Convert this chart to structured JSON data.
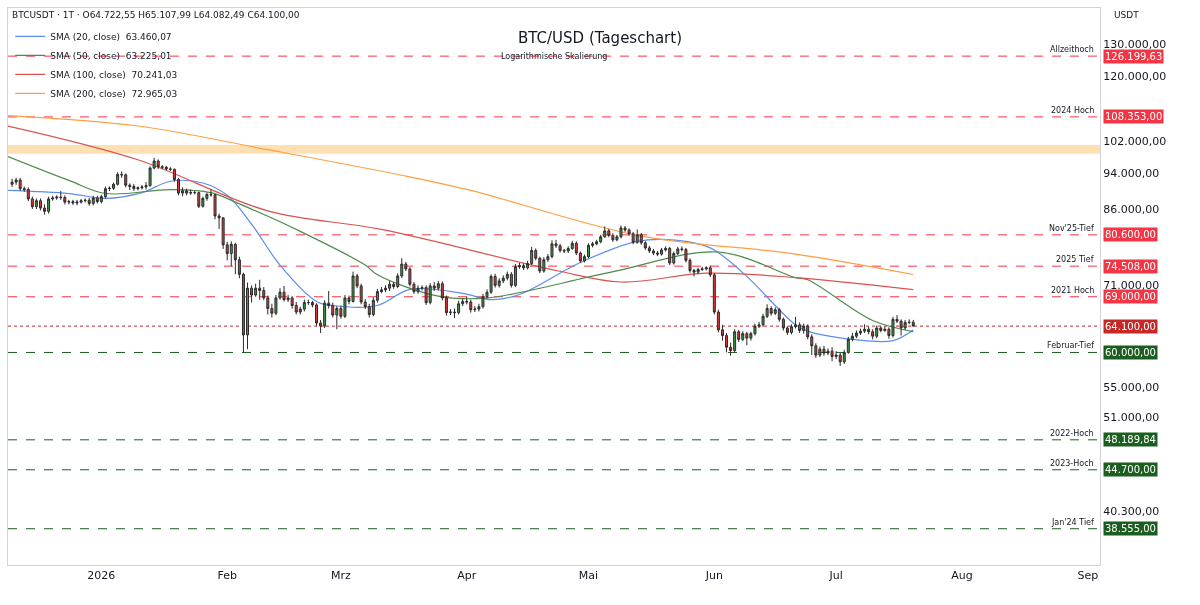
{
  "chart_data": {
    "type": "candlestick",
    "title": "BTC/USD (Tageschart)",
    "subtitle": "Logarithmische Skalierung",
    "ylabel": "USDT",
    "annotations": [
      "BTCUSDT · 1T · O64.722,55 H65.107,99 L64.082,49 C64.100,00",
      {
        "text": "Allzeithoch",
        "x": "2026-09-03",
        "y": 126199.63
      },
      {
        "text": "2024 Hoch",
        "x": "2026-09-03",
        "y": 108353
      },
      {
        "text": "Nov'25-Tief",
        "x": "2026-09-03",
        "y": 80600
      },
      {
        "text": "2025 Tief",
        "x": "2026-09-03",
        "y": 74508
      },
      {
        "text": "2021 Hoch",
        "x": "2026-09-03",
        "y": 69000
      },
      {
        "text": "Februar-Tief",
        "x": "2026-09-03",
        "y": 60000
      },
      {
        "text": "2022-Hoch",
        "x": "2026-09-03",
        "y": 48189.84
      },
      {
        "text": "2023-Hoch",
        "x": "2026-09-03",
        "y": 44700
      },
      {
        "text": "Jan'24 Tief",
        "x": "2026-09-03",
        "y": 38555
      }
    ],
    "legend": "top left",
    "xlim": [
      "2025-12-09",
      "2026-09-04"
    ],
    "xticks": [
      {
        "value": "2026-01-01",
        "label": "2026"
      },
      {
        "value": "2026-02-01",
        "label": "Feb"
      },
      {
        "value": "2026-03-01",
        "label": "Mrz"
      },
      {
        "value": "2026-04-01",
        "label": "Apr"
      },
      {
        "value": "2026-05-01",
        "label": "Mai"
      },
      {
        "value": "2026-06-01",
        "label": "Jun"
      },
      {
        "value": "2026-07-01",
        "label": "Jul"
      },
      {
        "value": "2026-08-01",
        "label": "Aug"
      },
      {
        "value": "2026-09-01",
        "label": "Sep"
      }
    ],
    "log": true,
    "ylim": [
      35200,
      142400
    ],
    "yticks": [
      {
        "value": 40300,
        "label": "40.300,00"
      },
      {
        "value": 51000,
        "label": "51.000,00"
      },
      {
        "value": 55000,
        "label": "55.000,00"
      },
      {
        "value": 71000,
        "label": "71.000,00"
      },
      {
        "value": 86000,
        "label": "86.000,00"
      },
      {
        "value": 94000,
        "label": "94.000,00"
      },
      {
        "value": 102000,
        "label": "102.000,00"
      },
      {
        "value": 120000,
        "label": "120.000,00"
      },
      {
        "value": 130000,
        "label": "130.000,00"
      }
    ],
    "ref_lines": [
      {
        "axis": "y",
        "value": 126199.63,
        "label": "126.199,63",
        "color": "#f23645",
        "line_style": "dashed"
      },
      {
        "axis": "y",
        "value": 108353,
        "label": "108.353,00",
        "color": "#f23645",
        "line_style": "dashed"
      },
      {
        "axis": "y",
        "value": 80600,
        "label": "80.600,00",
        "color": "#f23645",
        "line_style": "dashed"
      },
      {
        "axis": "y",
        "value": 74508,
        "label": "74.508,00",
        "color": "#f23645",
        "line_style": "dashed"
      },
      {
        "axis": "y",
        "value": 69000,
        "label": "69.000,00",
        "color": "#f23645",
        "line_style": "dashed"
      },
      {
        "axis": "y",
        "value": 64100,
        "label": "64.100,00",
        "color": "#c62828",
        "line_style": "dotted"
      },
      {
        "axis": "y",
        "value": 60000,
        "label": "60.000,00",
        "color": "#1b5e20",
        "line_style": "dashed"
      },
      {
        "axis": "y",
        "value": 48189.84,
        "label": "48.189,84",
        "color": "#1b5e20",
        "line_style": "dashed"
      },
      {
        "axis": "y",
        "value": 44700,
        "label": "44.700,00",
        "color": "#1b5e20",
        "line_style": "dashed"
      },
      {
        "axis": "y",
        "value": 38555,
        "label": "38.555,00",
        "color": "#1b5e20",
        "line_style": "dashed"
      }
    ],
    "bands": [
      {
        "axis": "y",
        "from": 98800,
        "to": 101000,
        "color": "#ffe0b2"
      }
    ],
    "x": [
      "2025-12-10",
      "2025-12-11",
      "2025-12-12",
      "2025-12-13",
      "2025-12-14",
      "2025-12-15",
      "2025-12-16",
      "2025-12-17",
      "2025-12-18",
      "2025-12-19",
      "2025-12-20",
      "2025-12-21",
      "2025-12-22",
      "2025-12-23",
      "2025-12-24",
      "2025-12-25",
      "2025-12-26",
      "2025-12-27",
      "2025-12-28",
      "2025-12-29",
      "2025-12-30",
      "2025-12-31",
      "2026-01-01",
      "2026-01-02",
      "2026-01-03",
      "2026-01-04",
      "2026-01-05",
      "2026-01-06",
      "2026-01-07",
      "2026-01-08",
      "2026-01-09",
      "2026-01-10",
      "2026-01-11",
      "2026-01-12",
      "2026-01-13",
      "2026-01-14",
      "2026-01-15",
      "2026-01-16",
      "2026-01-17",
      "2026-01-18",
      "2026-01-19",
      "2026-01-20",
      "2026-01-21",
      "2026-01-22",
      "2026-01-23",
      "2026-01-24",
      "2026-01-25",
      "2026-01-26",
      "2026-01-27",
      "2026-01-28",
      "2026-01-29",
      "2026-01-30",
      "2026-01-31",
      "2026-02-01",
      "2026-02-02",
      "2026-02-03",
      "2026-02-04",
      "2026-02-05",
      "2026-02-06",
      "2026-02-07",
      "2026-02-08",
      "2026-02-09",
      "2026-02-10",
      "2026-02-11",
      "2026-02-12",
      "2026-02-13",
      "2026-02-14",
      "2026-02-15",
      "2026-02-16",
      "2026-02-17",
      "2026-02-18",
      "2026-02-19",
      "2026-02-20",
      "2026-02-21",
      "2026-02-22",
      "2026-02-23",
      "2026-02-24",
      "2026-02-25",
      "2026-02-26",
      "2026-02-27",
      "2026-02-28",
      "2026-03-01",
      "2026-03-02",
      "2026-03-03",
      "2026-03-04",
      "2026-03-05",
      "2026-03-06",
      "2026-03-07",
      "2026-03-08",
      "2026-03-09",
      "2026-03-10",
      "2026-03-11",
      "2026-03-12",
      "2026-03-13",
      "2026-03-14",
      "2026-03-15",
      "2026-03-16",
      "2026-03-17",
      "2026-03-18",
      "2026-03-19",
      "2026-03-20",
      "2026-03-21",
      "2026-03-22",
      "2026-03-23",
      "2026-03-24",
      "2026-03-25",
      "2026-03-26",
      "2026-03-27",
      "2026-03-28",
      "2026-03-29",
      "2026-03-30",
      "2026-03-31",
      "2026-04-01",
      "2026-04-02",
      "2026-04-03",
      "2026-04-04",
      "2026-04-05",
      "2026-04-06",
      "2026-04-07",
      "2026-04-08",
      "2026-04-09",
      "2026-04-10",
      "2026-04-11",
      "2026-04-12",
      "2026-04-13",
      "2026-04-14",
      "2026-04-15",
      "2026-04-16",
      "2026-04-17",
      "2026-04-18",
      "2026-04-19",
      "2026-04-20",
      "2026-04-21",
      "2026-04-22",
      "2026-04-23",
      "2026-04-24",
      "2026-04-25",
      "2026-04-26",
      "2026-04-27",
      "2026-04-28",
      "2026-04-29",
      "2026-04-30",
      "2026-05-01",
      "2026-05-02",
      "2026-05-03",
      "2026-05-04",
      "2026-05-05",
      "2026-05-06",
      "2026-05-07",
      "2026-05-08",
      "2026-05-09",
      "2026-05-10",
      "2026-05-11",
      "2026-05-12",
      "2026-05-13",
      "2026-05-14",
      "2026-05-15",
      "2026-05-16",
      "2026-05-17",
      "2026-05-18",
      "2026-05-19",
      "2026-05-20",
      "2026-05-21",
      "2026-05-22",
      "2026-05-23",
      "2026-05-24",
      "2026-05-25",
      "2026-05-26",
      "2026-05-27",
      "2026-05-28",
      "2026-05-29",
      "2026-05-30",
      "2026-05-31",
      "2026-06-01",
      "2026-06-02",
      "2026-06-03",
      "2026-06-04",
      "2026-06-05",
      "2026-06-06",
      "2026-06-07",
      "2026-06-08",
      "2026-06-09",
      "2026-06-10",
      "2026-06-11",
      "2026-06-12",
      "2026-06-13",
      "2026-06-14",
      "2026-06-15",
      "2026-06-16",
      "2026-06-17",
      "2026-06-18",
      "2026-06-19",
      "2026-06-20",
      "2026-06-21",
      "2026-06-22",
      "2026-06-23",
      "2026-06-24",
      "2026-06-25",
      "2026-06-26",
      "2026-06-27",
      "2026-06-28",
      "2026-06-29",
      "2026-06-30",
      "2026-07-01",
      "2026-07-02",
      "2026-07-03",
      "2026-07-04",
      "2026-07-05",
      "2026-07-06",
      "2026-07-07",
      "2026-07-08",
      "2026-07-09",
      "2026-07-10",
      "2026-07-11",
      "2026-07-12",
      "2026-07-13",
      "2026-07-14",
      "2026-07-15",
      "2026-07-16",
      "2026-07-17",
      "2026-07-18",
      "2026-07-19",
      "2026-07-20"
    ],
    "ohlc": [
      [
        91500,
        92800,
        90900,
        92000
      ],
      [
        92000,
        93000,
        91400,
        92500
      ],
      [
        92500,
        93000,
        90000,
        90500
      ],
      [
        90500,
        91000,
        89800,
        90300
      ],
      [
        90300,
        90800,
        87700,
        88200
      ],
      [
        88200,
        88700,
        86000,
        86500
      ],
      [
        86500,
        88300,
        86000,
        87800
      ],
      [
        87800,
        88300,
        85700,
        86200
      ],
      [
        86200,
        87000,
        84800,
        85500
      ],
      [
        85500,
        88700,
        85000,
        88200
      ],
      [
        88200,
        88900,
        87800,
        88400
      ],
      [
        88400,
        89000,
        88000,
        88600
      ],
      [
        88600,
        90000,
        88000,
        88500
      ],
      [
        88500,
        89000,
        87000,
        87500
      ],
      [
        87500,
        88000,
        87000,
        87600
      ],
      [
        87600,
        88000,
        86900,
        87300
      ],
      [
        87300,
        88000,
        86800,
        87500
      ],
      [
        87500,
        88200,
        87200,
        87800
      ],
      [
        87800,
        88300,
        87400,
        87900
      ],
      [
        87900,
        88400,
        86700,
        87200
      ],
      [
        87200,
        88900,
        86800,
        88400
      ],
      [
        88400,
        88900,
        87200,
        87600
      ],
      [
        87600,
        89100,
        87200,
        88700
      ],
      [
        88700,
        91000,
        88300,
        90500
      ],
      [
        90500,
        91000,
        90000,
        90600
      ],
      [
        90600,
        91900,
        90200,
        91500
      ],
      [
        91500,
        94300,
        91200,
        93800
      ],
      [
        93800,
        94500,
        93000,
        93700
      ],
      [
        93700,
        94000,
        90800,
        91300
      ],
      [
        91300,
        91700,
        90200,
        91000
      ],
      [
        91000,
        91600,
        90000,
        90500
      ],
      [
        90500,
        91000,
        90100,
        90700
      ],
      [
        90700,
        91300,
        90300,
        90900
      ],
      [
        90900,
        92000,
        90300,
        91200
      ],
      [
        91200,
        95700,
        90900,
        95300
      ],
      [
        95300,
        97800,
        95000,
        97000
      ],
      [
        97000,
        97400,
        95100,
        95600
      ],
      [
        95600,
        96000,
        95000,
        95500
      ],
      [
        95500,
        95800,
        94800,
        95100
      ],
      [
        95100,
        95500,
        94600,
        95000
      ],
      [
        95000,
        95200,
        92100,
        92600
      ],
      [
        92600,
        93000,
        89000,
        89500
      ],
      [
        89500,
        90800,
        88800,
        90000
      ],
      [
        90000,
        90500,
        89000,
        89500
      ],
      [
        89500,
        90300,
        89100,
        89600
      ],
      [
        89600,
        90000,
        89200,
        89600
      ],
      [
        89600,
        89800,
        86200,
        86600
      ],
      [
        86600,
        88700,
        86300,
        88300
      ],
      [
        88300,
        89600,
        87800,
        89200
      ],
      [
        89200,
        90300,
        88700,
        89100
      ],
      [
        89100,
        89300,
        83800,
        84500
      ],
      [
        84500,
        85000,
        81800,
        84100
      ],
      [
        84100,
        84300,
        77800,
        78600
      ],
      [
        78600,
        79200,
        75600,
        76900
      ],
      [
        76900,
        79300,
        74500,
        78700
      ],
      [
        78700,
        79000,
        73000,
        75700
      ],
      [
        75700,
        76300,
        72300,
        73000
      ],
      [
        73000,
        73300,
        60000,
        62700
      ],
      [
        62700,
        71500,
        60500,
        70500
      ],
      [
        70500,
        71000,
        68000,
        69300
      ],
      [
        69300,
        71300,
        69000,
        70500
      ],
      [
        70500,
        72000,
        68500,
        70100
      ],
      [
        70100,
        70700,
        68400,
        68800
      ],
      [
        68800,
        69200,
        66000,
        67000
      ],
      [
        67000,
        67800,
        65500,
        66200
      ],
      [
        66200,
        69300,
        65900,
        68800
      ],
      [
        68800,
        70500,
        68500,
        69800
      ],
      [
        69800,
        70900,
        68200,
        68500
      ],
      [
        68500,
        69300,
        68100,
        68800
      ],
      [
        68800,
        69100,
        67000,
        67500
      ],
      [
        67500,
        68100,
        66000,
        66400
      ],
      [
        66400,
        67300,
        66000,
        66900
      ],
      [
        66900,
        68500,
        66500,
        68000
      ],
      [
        68000,
        68500,
        67600,
        68000
      ],
      [
        68000,
        68300,
        67200,
        67600
      ],
      [
        67600,
        67900,
        64100,
        64600
      ],
      [
        64600,
        65100,
        63000,
        64100
      ],
      [
        64100,
        68400,
        63800,
        67900
      ],
      [
        67900,
        70000,
        67000,
        67500
      ],
      [
        67500,
        68000,
        65500,
        65900
      ],
      [
        65900,
        67400,
        63600,
        67000
      ],
      [
        67000,
        67500,
        65300,
        65700
      ],
      [
        65700,
        69300,
        65400,
        68800
      ],
      [
        68800,
        69200,
        67700,
        68200
      ],
      [
        68200,
        73500,
        68000,
        72700
      ],
      [
        72700,
        73100,
        70500,
        70900
      ],
      [
        70900,
        71300,
        67700,
        68100
      ],
      [
        68100,
        68600,
        66900,
        67300
      ],
      [
        67300,
        67800,
        65500,
        66000
      ],
      [
        66000,
        68900,
        65700,
        68400
      ],
      [
        68400,
        70400,
        68000,
        69900
      ],
      [
        69900,
        70700,
        69600,
        70200
      ],
      [
        70200,
        71000,
        69800,
        70500
      ],
      [
        70500,
        71800,
        70000,
        71200
      ],
      [
        71200,
        71600,
        70400,
        70800
      ],
      [
        70800,
        73200,
        70500,
        72700
      ],
      [
        72700,
        76000,
        72300,
        74900
      ],
      [
        74900,
        75300,
        73600,
        74000
      ],
      [
        74000,
        74300,
        70800,
        71200
      ],
      [
        71200,
        71600,
        69500,
        69900
      ],
      [
        69900,
        71000,
        69500,
        70500
      ],
      [
        70500,
        71000,
        70100,
        70600
      ],
      [
        70600,
        71000,
        67600,
        68000
      ],
      [
        68000,
        71400,
        67700,
        70900
      ],
      [
        70900,
        71600,
        70000,
        70500
      ],
      [
        70500,
        71800,
        70100,
        71300
      ],
      [
        71300,
        71700,
        68400,
        68800
      ],
      [
        68800,
        69200,
        65800,
        66300
      ],
      [
        66300,
        66900,
        65900,
        66400
      ],
      [
        66400,
        67000,
        65400,
        66300
      ],
      [
        66300,
        68300,
        66000,
        67800
      ],
      [
        67800,
        68700,
        67400,
        68200
      ],
      [
        68200,
        69000,
        67700,
        68100
      ],
      [
        68100,
        68500,
        66300,
        66800
      ],
      [
        66800,
        67400,
        66400,
        66900
      ],
      [
        66900,
        67800,
        66500,
        67300
      ],
      [
        67300,
        69500,
        67000,
        69000
      ],
      [
        69000,
        70300,
        68700,
        69800
      ],
      [
        69800,
        73000,
        69500,
        72600
      ],
      [
        72600,
        73100,
        70600,
        71000
      ],
      [
        71000,
        72300,
        70600,
        71800
      ],
      [
        71800,
        72800,
        71400,
        72300
      ],
      [
        72300,
        73500,
        71900,
        73000
      ],
      [
        73000,
        73400,
        70600,
        71000
      ],
      [
        71000,
        74900,
        70700,
        74400
      ],
      [
        74400,
        75100,
        74000,
        74600
      ],
      [
        74600,
        75000,
        73800,
        74200
      ],
      [
        74200,
        75500,
        73900,
        75000
      ],
      [
        75000,
        78200,
        74700,
        77500
      ],
      [
        77500,
        77900,
        75600,
        76000
      ],
      [
        76000,
        76300,
        73200,
        73600
      ],
      [
        73600,
        76200,
        73300,
        75700
      ],
      [
        75700,
        76800,
        75300,
        76300
      ],
      [
        76300,
        79500,
        76000,
        78800
      ],
      [
        78800,
        79600,
        78000,
        78400
      ],
      [
        78400,
        78800,
        77100,
        77500
      ],
      [
        77500,
        77800,
        77000,
        77400
      ],
      [
        77400,
        78300,
        77000,
        77900
      ],
      [
        77900,
        79400,
        77600,
        78900
      ],
      [
        78900,
        79300,
        76600,
        77000
      ],
      [
        77000,
        77300,
        75100,
        75500
      ],
      [
        75500,
        76700,
        75200,
        76300
      ],
      [
        76300,
        78900,
        76000,
        78500
      ],
      [
        78500,
        79200,
        78100,
        78800
      ],
      [
        78800,
        79600,
        78500,
        79200
      ],
      [
        79200,
        80600,
        78900,
        80200
      ],
      [
        80200,
        82300,
        80000,
        81400
      ],
      [
        81400,
        81800,
        80100,
        80500
      ],
      [
        80500,
        80900,
        79200,
        79600
      ],
      [
        79600,
        80600,
        79300,
        80200
      ],
      [
        80200,
        82500,
        79900,
        82000
      ],
      [
        82000,
        82400,
        81200,
        81600
      ],
      [
        81600,
        81900,
        80400,
        80800
      ],
      [
        80800,
        81200,
        78700,
        79100
      ],
      [
        79100,
        81700,
        78800,
        80600
      ],
      [
        80600,
        81000,
        78600,
        79000
      ],
      [
        79000,
        79300,
        77600,
        78000
      ],
      [
        78000,
        78400,
        77000,
        77400
      ],
      [
        77400,
        77800,
        76600,
        77000
      ],
      [
        77000,
        77400,
        76400,
        76800
      ],
      [
        76800,
        78000,
        76500,
        77600
      ],
      [
        77600,
        78300,
        77300,
        77900
      ],
      [
        77900,
        78200,
        74700,
        75100
      ],
      [
        75100,
        77300,
        74800,
        76900
      ],
      [
        76900,
        78200,
        76600,
        77800
      ],
      [
        77800,
        78300,
        77300,
        77700
      ],
      [
        77700,
        78000,
        75200,
        75600
      ],
      [
        75600,
        76000,
        73300,
        73700
      ],
      [
        73700,
        74000,
        72600,
        73400
      ],
      [
        73400,
        74200,
        73100,
        73900
      ],
      [
        73900,
        74400,
        73600,
        74000
      ],
      [
        74000,
        74500,
        73700,
        74200
      ],
      [
        74200,
        74600,
        72500,
        72900
      ],
      [
        72900,
        73200,
        66000,
        66400
      ],
      [
        66400,
        66800,
        63100,
        63500
      ],
      [
        63500,
        64300,
        61800,
        62600
      ],
      [
        62600,
        63000,
        60000,
        60800
      ],
      [
        60800,
        61500,
        59500,
        60300
      ],
      [
        60300,
        63600,
        60000,
        63200
      ],
      [
        63200,
        63500,
        61600,
        62000
      ],
      [
        62000,
        63300,
        61700,
        62900
      ],
      [
        62900,
        63200,
        61100,
        62200
      ],
      [
        62200,
        63200,
        61800,
        62900
      ],
      [
        62900,
        64500,
        62600,
        64100
      ],
      [
        64100,
        64800,
        63800,
        64300
      ],
      [
        64300,
        66100,
        64000,
        65700
      ],
      [
        65700,
        67700,
        65400,
        67000
      ],
      [
        67000,
        67400,
        65800,
        66200
      ],
      [
        66200,
        67200,
        65900,
        66800
      ],
      [
        66800,
        67100,
        64800,
        65200
      ],
      [
        65200,
        65500,
        63400,
        63800
      ],
      [
        63800,
        64100,
        62700,
        63100
      ],
      [
        63100,
        64400,
        62800,
        64000
      ],
      [
        64000,
        65600,
        63700,
        64300
      ],
      [
        64300,
        64700,
        63000,
        63400
      ],
      [
        63400,
        64500,
        62900,
        64100
      ],
      [
        64100,
        64400,
        62000,
        62400
      ],
      [
        62400,
        62800,
        59600,
        61000
      ],
      [
        61000,
        61400,
        59200,
        59600
      ],
      [
        59600,
        60900,
        59300,
        60500
      ],
      [
        60500,
        61000,
        59500,
        59900
      ],
      [
        59900,
        60600,
        59600,
        60200
      ],
      [
        60200,
        60800,
        58700,
        59400
      ],
      [
        59400,
        60200,
        59000,
        59600
      ],
      [
        59600,
        60000,
        58000,
        58600
      ],
      [
        58600,
        60400,
        58300,
        60000
      ],
      [
        60000,
        62400,
        59800,
        62000
      ],
      [
        62000,
        63000,
        61700,
        62500
      ],
      [
        62500,
        63400,
        62200,
        63000
      ],
      [
        63000,
        63700,
        62700,
        63300
      ],
      [
        63300,
        64400,
        63000,
        63600
      ],
      [
        63600,
        64000,
        62800,
        63200
      ],
      [
        63200,
        63600,
        62000,
        62500
      ],
      [
        62500,
        64200,
        62200,
        63800
      ],
      [
        63800,
        64100,
        63100,
        63400
      ],
      [
        63400,
        64000,
        63200,
        63600
      ],
      [
        63600,
        63900,
        62100,
        62600
      ],
      [
        62600,
        65600,
        62300,
        65200
      ],
      [
        65200,
        65900,
        64600,
        64900
      ],
      [
        64900,
        65200,
        62600,
        63800
      ],
      [
        63800,
        65100,
        63500,
        64700
      ],
      [
        64700,
        65200,
        64400,
        64720
      ],
      [
        64722.55,
        65107.99,
        64082.49,
        64100
      ]
    ],
    "series": [
      {
        "type": "line",
        "name": "SMA (20, close)  63.460,07",
        "color": "#5b8def",
        "x": [
          "2025-12-09",
          "2025-12-24",
          "2026-01-02",
          "2026-01-11",
          "2026-01-18",
          "2026-01-26",
          "2026-02-01",
          "2026-02-07",
          "2026-02-14",
          "2026-02-23",
          "2026-02-27",
          "2026-03-10",
          "2026-03-18",
          "2026-03-31",
          "2026-04-07",
          "2026-04-14",
          "2026-04-29",
          "2026-05-13",
          "2026-05-23",
          "2026-05-31",
          "2026-06-08",
          "2026-06-21",
          "2026-06-24",
          "2026-07-05",
          "2026-07-15",
          "2026-07-20"
        ],
        "values": [
          90100,
          89400,
          88300,
          89600,
          92200,
          91800,
          89000,
          82800,
          74700,
          68200,
          67500,
          67500,
          70300,
          69600,
          68500,
          69400,
          75200,
          79300,
          79500,
          78000,
          73300,
          64300,
          63300,
          62000,
          61800,
          63460.07
        ]
      },
      {
        "type": "line",
        "name": "SMA (50, close)  63.225,01",
        "color": "#4e8a4e",
        "x": [
          "2025-12-09",
          "2025-12-24",
          "2026-01-02",
          "2026-01-18",
          "2026-01-28",
          "2026-02-04",
          "2026-02-19",
          "2026-03-07",
          "2026-03-10",
          "2026-03-25",
          "2026-04-06",
          "2026-05-06",
          "2026-06-02",
          "2026-06-21",
          "2026-06-24",
          "2026-07-10",
          "2026-07-20"
        ],
        "values": [
          98100,
          92400,
          89400,
          90300,
          89600,
          87100,
          81300,
          74700,
          72900,
          69100,
          68800,
          73300,
          77200,
          72400,
          72000,
          65000,
          63225.01
        ]
      },
      {
        "type": "line",
        "name": "SMA (100, close)  70.241,03",
        "color": "#d9534f",
        "x": [
          "2025-12-09",
          "2026-01-10",
          "2026-02-11",
          "2026-03-11",
          "2026-04-23",
          "2026-05-09",
          "2026-05-30",
          "2026-06-21",
          "2026-07-20"
        ],
        "values": [
          105900,
          97300,
          85600,
          81700,
          73700,
          71600,
          73200,
          72400,
          70241.03
        ]
      },
      {
        "type": "line",
        "name": "SMA (200, close)  72.965,03",
        "color": "#ff9f43",
        "x": [
          "2025-12-09",
          "2026-01-10",
          "2026-02-11",
          "2026-03-16",
          "2026-04-02",
          "2026-05-13",
          "2026-06-21",
          "2026-07-20"
        ],
        "values": [
          108700,
          105900,
          99800,
          93600,
          90100,
          80500,
          76800,
          72965.03
        ]
      }
    ]
  }
}
